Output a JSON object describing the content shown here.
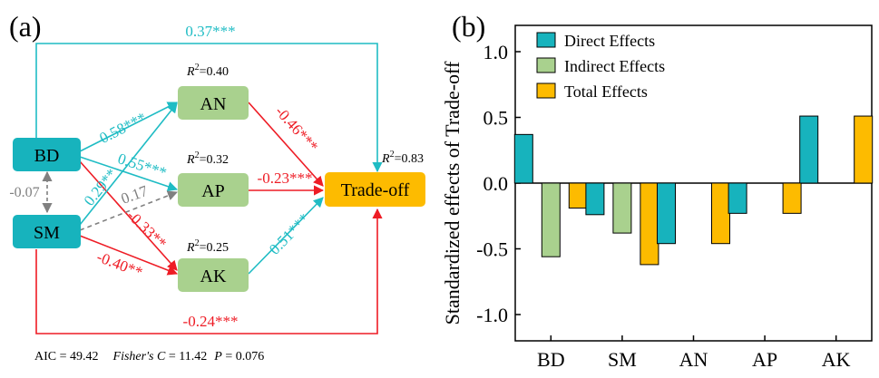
{
  "panel_a": {
    "label": "(a)",
    "nodes": {
      "BD": "BD",
      "SM": "SM",
      "AN": "AN",
      "AP": "AP",
      "AK": "AK",
      "trade_off": "Trade-off"
    },
    "r2": {
      "AN": "=0.40",
      "AP": "=0.32",
      "AK": "=0.25",
      "trade_off": "=0.83",
      "prefix": "R",
      "sup": "2"
    },
    "paths": {
      "bd_trade": "0.37***",
      "bd_an": "0.58***",
      "bd_ap": "0.55***",
      "bd_ak": "-0.33**",
      "sm_an": "0.29**",
      "sm_ap": "0.17",
      "sm_ak": "-0.40**",
      "sm_trade": "-0.24***",
      "an_trade": "-0.46***",
      "ap_trade": "-0.23***",
      "ak_trade": "0.51***",
      "bd_sm": "-0.07"
    },
    "stats": {
      "aic": "AIC = 49.42",
      "fisher_label": "Fisher's C",
      "fisher_value": " = 11.42",
      "p_label": "P",
      "p_value": " = 0.076"
    },
    "colors": {
      "positive": "#1fbcc4",
      "negative": "#ee1c25",
      "nonsig": "#808080",
      "node_teal": "#17b3bd",
      "node_green": "#a9d18e",
      "node_orange": "#fdbb00"
    }
  },
  "panel_b": {
    "label": "(b)"
  },
  "chart_data": {
    "type": "bar",
    "ylabel": "Standardized  effects  of Trade-off",
    "categories": [
      "BD",
      "SM",
      "AN",
      "AP",
      "AK"
    ],
    "ylim": [
      -1.2,
      1.2
    ],
    "yticks": [
      1.0,
      0.5,
      0.0,
      -0.5,
      -1.0
    ],
    "ytick_labels": [
      "1.0",
      "0.5",
      "0.0",
      "-0.5",
      "-1.0"
    ],
    "legend_position": "top-left",
    "series": [
      {
        "name": "Direct Effects",
        "color": "#17b3bd",
        "values": [
          0.37,
          -0.24,
          -0.46,
          -0.23,
          0.51
        ]
      },
      {
        "name": "Indirect Effects",
        "color": "#a9d18e",
        "values": [
          -0.56,
          -0.38,
          null,
          null,
          null
        ]
      },
      {
        "name": "Total Effects",
        "color": "#fdbb00",
        "values": [
          -0.19,
          -0.62,
          -0.46,
          -0.23,
          0.51
        ]
      }
    ]
  }
}
